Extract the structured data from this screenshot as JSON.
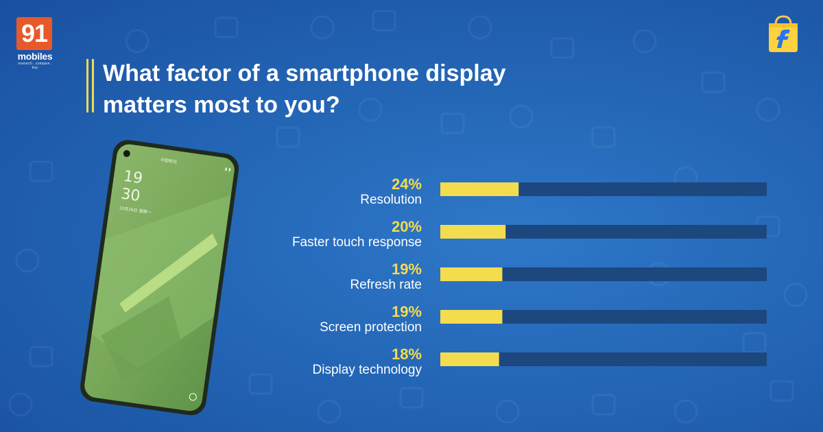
{
  "branding": {
    "badge_number": "91",
    "brand_name": "mobiles",
    "tagline": "research . compare . buy"
  },
  "title": "What factor of a smartphone display matters most to you?",
  "phone_screen": {
    "time_hours": "19",
    "time_minutes": "30",
    "date": "10月26日 星期一"
  },
  "colors": {
    "background": "#2466b6",
    "accent_yellow": "#f4dc4f",
    "track": "#1d477f",
    "logo_orange": "#e8592a"
  },
  "chart_data": {
    "type": "bar",
    "orientation": "horizontal",
    "categories": [
      "Resolution",
      "Faster touch response",
      "Refresh rate",
      "Screen protection",
      "Display technology"
    ],
    "values": [
      24,
      20,
      19,
      19,
      18
    ],
    "value_labels": [
      "24%",
      "20%",
      "19%",
      "19%",
      "18%"
    ],
    "xlim": [
      0,
      100
    ],
    "grid": false,
    "legend": "none"
  }
}
